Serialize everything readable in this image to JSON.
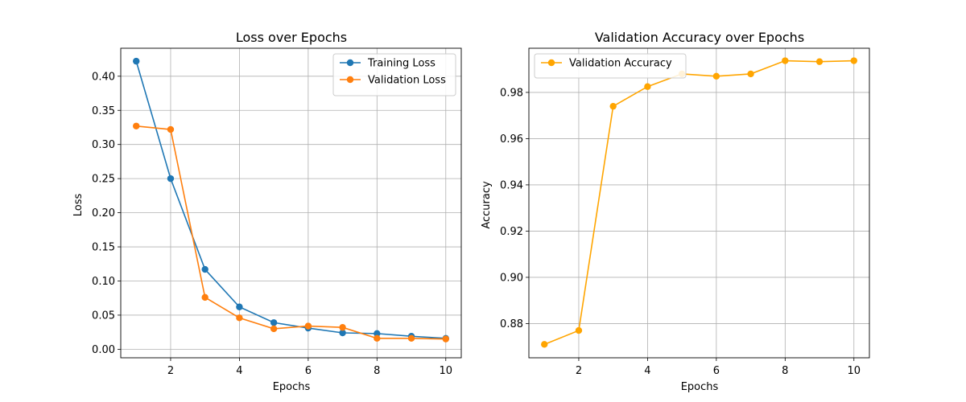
{
  "chart_data": [
    {
      "type": "line",
      "title": "Loss over Epochs",
      "xlabel": "Epochs",
      "ylabel": "Loss",
      "xlim": [
        0.55,
        10.45
      ],
      "ylim": [
        -0.0125,
        0.441
      ],
      "xticks": [
        2,
        4,
        6,
        8,
        10
      ],
      "xtick_labels": [
        "2",
        "4",
        "6",
        "8",
        "10"
      ],
      "yticks": [
        0.0,
        0.05,
        0.1,
        0.15,
        0.2,
        0.25,
        0.3,
        0.35,
        0.4
      ],
      "ytick_labels": [
        "0.00",
        "0.05",
        "0.10",
        "0.15",
        "0.20",
        "0.25",
        "0.30",
        "0.35",
        "0.40"
      ],
      "grid": true,
      "legend": "top-right",
      "x": [
        1,
        2,
        3,
        4,
        5,
        6,
        7,
        8,
        9,
        10
      ],
      "series": [
        {
          "name": "Training Loss",
          "color": "#1f77b4",
          "values": [
            0.422,
            0.25,
            0.117,
            0.062,
            0.039,
            0.031,
            0.024,
            0.023,
            0.019,
            0.016
          ]
        },
        {
          "name": "Validation Loss",
          "color": "#ff7f0e",
          "values": [
            0.327,
            0.322,
            0.076,
            0.046,
            0.03,
            0.034,
            0.032,
            0.016,
            0.016,
            0.015
          ]
        }
      ]
    },
    {
      "type": "line",
      "title": "Validation Accuracy over Epochs",
      "xlabel": "Epochs",
      "ylabel": "Accuracy",
      "xlim": [
        0.55,
        10.45
      ],
      "ylim": [
        0.8652,
        0.9991
      ],
      "xticks": [
        2,
        4,
        6,
        8,
        10
      ],
      "xtick_labels": [
        "2",
        "4",
        "6",
        "8",
        "10"
      ],
      "yticks": [
        0.88,
        0.9,
        0.92,
        0.94,
        0.96,
        0.98
      ],
      "ytick_labels": [
        "0.88",
        "0.90",
        "0.92",
        "0.94",
        "0.96",
        "0.98"
      ],
      "grid": true,
      "legend": "top-left",
      "x": [
        1,
        2,
        3,
        4,
        5,
        6,
        7,
        8,
        9,
        10
      ],
      "series": [
        {
          "name": "Validation Accuracy",
          "color": "#ffa500",
          "values": [
            0.871,
            0.877,
            0.974,
            0.9825,
            0.988,
            0.987,
            0.988,
            0.9937,
            0.9933,
            0.9937
          ]
        }
      ]
    }
  ]
}
